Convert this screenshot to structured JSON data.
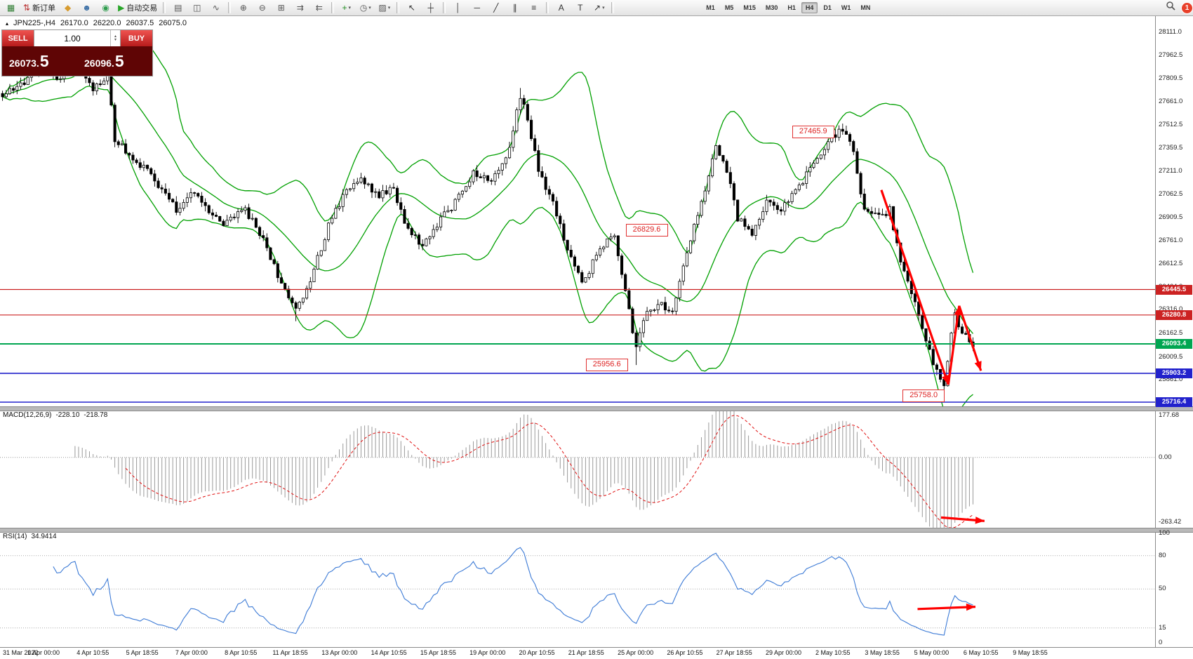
{
  "toolbar": {
    "items": [
      {
        "name": "new-chart-button",
        "glyph": "▦",
        "color": "#2e7d32"
      },
      {
        "name": "new-order-button",
        "glyph": "⇅",
        "color": "#bb3333",
        "label": "新订单"
      },
      {
        "name": "mql5-community-button",
        "glyph": "◆",
        "color": "#d79b2f"
      },
      {
        "name": "profile-button",
        "glyph": "☻",
        "color": "#3a6ea5"
      },
      {
        "name": "news-button",
        "glyph": "◉",
        "color": "#2f9d4e"
      },
      {
        "name": "autotrading-button",
        "glyph": "▶",
        "color": "#27a527",
        "label": "自动交易"
      },
      {
        "sep": true
      },
      {
        "name": "ohlc-bars-button",
        "glyph": "▤",
        "color": "#555555"
      },
      {
        "name": "candlestick-chart-button",
        "glyph": "◫",
        "color": "#555555"
      },
      {
        "name": "line-chart-button",
        "glyph": "∿",
        "color": "#555555"
      },
      {
        "sep": true
      },
      {
        "name": "zoom-in-button",
        "glyph": "⊕",
        "color": "#555555"
      },
      {
        "name": "zoom-out-button",
        "glyph": "⊖",
        "color": "#555555"
      },
      {
        "name": "tile-windows-button",
        "glyph": "⊞",
        "color": "#555555"
      },
      {
        "name": "auto-scroll-button",
        "glyph": "⇉",
        "color": "#555555"
      },
      {
        "name": "chart-shift-button",
        "glyph": "⇇",
        "color": "#555555"
      },
      {
        "sep": true
      },
      {
        "name": "indicators-button",
        "glyph": "+",
        "color": "#1e8c1e",
        "dropdown": true
      },
      {
        "name": "periods-button",
        "glyph": "◷",
        "color": "#555555",
        "dropdown": true
      },
      {
        "name": "templates-button",
        "glyph": "▨",
        "color": "#555555",
        "dropdown": true
      },
      {
        "sep": true
      },
      {
        "name": "cursor-button",
        "glyph": "↖",
        "color": "#333333"
      },
      {
        "name": "crosshair-button",
        "glyph": "┼",
        "color": "#333333"
      },
      {
        "sep": true
      },
      {
        "name": "vertical-line-button",
        "glyph": "│",
        "color": "#333333"
      },
      {
        "name": "horizontal-line-button",
        "glyph": "─",
        "color": "#333333"
      },
      {
        "name": "trendline-button",
        "glyph": "╱",
        "color": "#333333"
      },
      {
        "name": "equidistant-channel-button",
        "glyph": "∥",
        "color": "#333333"
      },
      {
        "name": "fibonacci-button",
        "glyph": "≡",
        "color": "#333333"
      },
      {
        "sep": true
      },
      {
        "name": "text-button",
        "glyph": "A",
        "color": "#333333"
      },
      {
        "name": "text-label-button",
        "glyph": "T",
        "color": "#333333"
      },
      {
        "name": "arrows-button",
        "glyph": "↗",
        "color": "#333333",
        "dropdown": true
      },
      {
        "sep": true
      }
    ],
    "timeframes": [
      "M1",
      "M5",
      "M15",
      "M30",
      "H1",
      "H4",
      "D1",
      "W1",
      "MN"
    ],
    "active_timeframe": "H4",
    "notification_count": "1"
  },
  "chart": {
    "header": {
      "marker": "▴",
      "symbol_period": "JPN225-,H4",
      "open": "26170.0",
      "high": "26220.0",
      "low": "26037.5",
      "close": "26075.0"
    },
    "one_click": {
      "sell_label": "SELL",
      "buy_label": "BUY",
      "volume": "1.00",
      "spin_up": "▴",
      "spin_down": "▾",
      "sell_price_main": "26073.",
      "sell_price_frac": "5",
      "buy_price_main": "26096.",
      "buy_price_frac": "5"
    }
  },
  "price_axis": {
    "ticks": [
      "28111.0",
      "27962.5",
      "27809.5",
      "27661.0",
      "27512.5",
      "27359.5",
      "27211.0",
      "27062.5",
      "26909.5",
      "26761.0",
      "26612.5",
      "26464.0",
      "26316.0",
      "26162.5",
      "26009.5",
      "25861.0",
      "25712.5"
    ]
  },
  "time_axis": {
    "labels": [
      "31 Mar 2022",
      "1 Apr 00:00",
      "4 Apr 10:55",
      "5 Apr 18:55",
      "7 Apr 00:00",
      "8 Apr 10:55",
      "11 Apr 18:55",
      "13 Apr 00:00",
      "14 Apr 10:55",
      "15 Apr 18:55",
      "19 Apr 00:00",
      "20 Apr 10:55",
      "21 Apr 18:55",
      "25 Apr 00:00",
      "26 Apr 10:55",
      "27 Apr 18:55",
      "29 Apr 00:00",
      "2 May 10:55",
      "3 May 18:55",
      "5 May 00:00",
      "6 May 10:55",
      "9 May 18:55"
    ]
  },
  "macd": {
    "title": "MACD(12,26,9)",
    "macd_value": "-228.10",
    "signal_value": "-218.78",
    "axis_max": "177.68",
    "axis_zero": "0.00",
    "axis_min": "-263.42"
  },
  "rsi": {
    "title": "RSI(14)",
    "value": "34.9414",
    "axis_max": "100",
    "axis_min": "0",
    "levels": [
      80,
      50,
      15
    ],
    "period": 14
  },
  "colors": {
    "bollinger": "#00a000",
    "bear_candle": "#000000",
    "bull_candle": "#ffffff",
    "macd_histogram": "#9a9a9a",
    "macd_signal": "#e01010",
    "rsi_line": "#3d7bd6",
    "annotation": "#ff0000",
    "level_red": "#cc2222",
    "level_green": "#00a651",
    "level_blue": "#2222cc"
  },
  "chart_data": {
    "type": "candlestick",
    "symbol": "JPN225-",
    "timeframe": "H4",
    "candles": 269,
    "last_close": 26075.0,
    "visible_price_range": [
      25689,
      28211
    ],
    "price_path": [
      [
        0,
        27700
      ],
      [
        6,
        27790
      ],
      [
        11,
        27900
      ],
      [
        16,
        27800
      ],
      [
        20,
        27920
      ],
      [
        25,
        27750
      ],
      [
        29,
        27830
      ],
      [
        31,
        27420
      ],
      [
        36,
        27300
      ],
      [
        42,
        27160
      ],
      [
        48,
        26960
      ],
      [
        52,
        27090
      ],
      [
        56,
        26980
      ],
      [
        61,
        26880
      ],
      [
        67,
        26960
      ],
      [
        72,
        26780
      ],
      [
        76,
        26540
      ],
      [
        81,
        26310
      ],
      [
        85,
        26500
      ],
      [
        90,
        26860
      ],
      [
        95,
        27090
      ],
      [
        99,
        27150
      ],
      [
        104,
        27060
      ],
      [
        108,
        27110
      ],
      [
        111,
        26870
      ],
      [
        116,
        26720
      ],
      [
        120,
        26870
      ],
      [
        125,
        27010
      ],
      [
        130,
        27200
      ],
      [
        135,
        27150
      ],
      [
        140,
        27360
      ],
      [
        143,
        27700
      ],
      [
        145,
        27560
      ],
      [
        148,
        27210
      ],
      [
        152,
        27010
      ],
      [
        156,
        26710
      ],
      [
        160,
        26480
      ],
      [
        165,
        26710
      ],
      [
        169,
        26810
      ],
      [
        172,
        26420
      ],
      [
        175,
        26060
      ],
      [
        177,
        26260
      ],
      [
        181,
        26360
      ],
      [
        185,
        26310
      ],
      [
        188,
        26610
      ],
      [
        193,
        27010
      ],
      [
        197,
        27360
      ],
      [
        200,
        27210
      ],
      [
        203,
        26910
      ],
      [
        207,
        26810
      ],
      [
        211,
        27010
      ],
      [
        215,
        26960
      ],
      [
        220,
        27110
      ],
      [
        224,
        27260
      ],
      [
        228,
        27410
      ],
      [
        232,
        27480
      ],
      [
        235,
        27340
      ],
      [
        238,
        26960
      ],
      [
        242,
        26910
      ],
      [
        245,
        26960
      ],
      [
        248,
        26610
      ],
      [
        251,
        26410
      ],
      [
        254,
        26210
      ],
      [
        257,
        25960
      ],
      [
        260,
        25810
      ],
      [
        262,
        26160
      ],
      [
        263,
        26290
      ],
      [
        265,
        26160
      ],
      [
        267,
        26120
      ],
      [
        268,
        26075
      ]
    ],
    "forced_lows": [
      [
        81,
        26240
      ],
      [
        175,
        25956.6
      ],
      [
        260,
        25758.0
      ]
    ],
    "forced_highs": [
      [
        12,
        27990
      ],
      [
        20,
        28010
      ],
      [
        143,
        27750
      ],
      [
        232,
        27520
      ]
    ],
    "levels": [
      {
        "price": 26445.5,
        "color": "#cc2222",
        "width": 1.2,
        "badge": "26445.5"
      },
      {
        "price": 26280.8,
        "color": "#cc2222",
        "width": 1.2,
        "badge": "26280.8"
      },
      {
        "price": 26093.4,
        "color": "#00a651",
        "width": 2,
        "badge": "26093.4"
      },
      {
        "price": 25903.2,
        "color": "#2222cc",
        "width": 1.6,
        "badge": "25903.2"
      },
      {
        "price": 25716.4,
        "color": "#2222cc",
        "width": 1.6,
        "badge": "25716.4"
      }
    ],
    "price_annotations": [
      {
        "text": "27465.9",
        "i": 224,
        "price": 27465.9
      },
      {
        "text": "26829.6",
        "i": 178,
        "price": 26829.6
      },
      {
        "text": "25956.6",
        "i": 167,
        "price": 25956.6
      },
      {
        "text": "25758.0",
        "i": 254.5,
        "price": 25758.0
      }
    ],
    "arrows": [
      {
        "space": "price",
        "from": [
          243,
          27090
        ],
        "to": [
          261.5,
          25830
        ]
      },
      {
        "space": "price",
        "from": [
          261.5,
          25830
        ],
        "to": [
          264.5,
          26340
        ]
      },
      {
        "space": "price",
        "from": [
          264.5,
          26340
        ],
        "to": [
          270.5,
          25920
        ]
      },
      {
        "space": "macd",
        "from": [
          259.5,
          -225
        ],
        "to": [
          271.5,
          -238
        ]
      },
      {
        "space": "rsi",
        "from": [
          253,
          32
        ],
        "to": [
          269,
          34
        ]
      }
    ],
    "indicators": {
      "bollinger_bands": {
        "period": 20,
        "deviation": 2
      },
      "macd": [
        12,
        26,
        9
      ],
      "rsi": 14
    }
  }
}
